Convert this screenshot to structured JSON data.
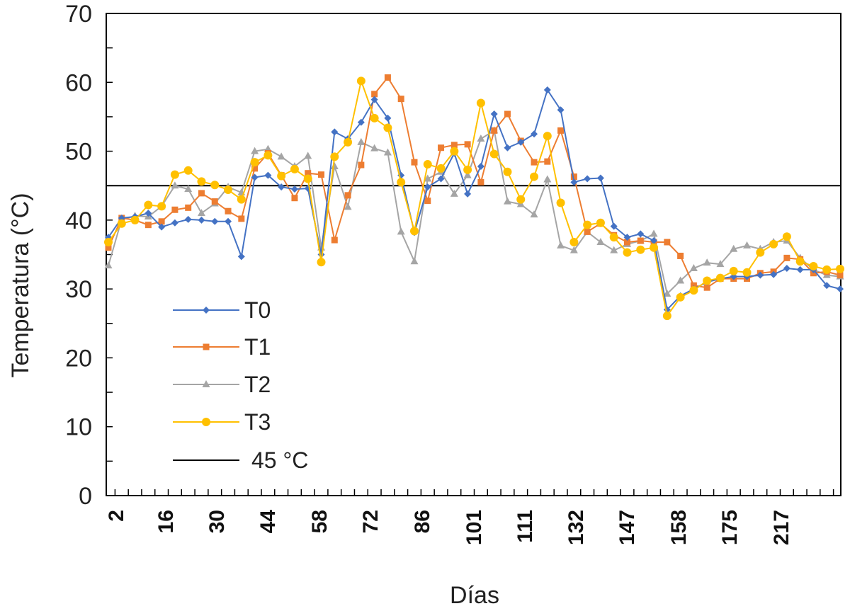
{
  "chart_data": {
    "type": "line",
    "title": "",
    "xlabel": "Días",
    "ylabel": "Temperatura (°C)",
    "ylim": [
      0,
      70
    ],
    "yticks": [
      0,
      10,
      20,
      30,
      40,
      50,
      60,
      70
    ],
    "xtick_labels": [
      "2",
      "16",
      "30",
      "44",
      "58",
      "72",
      "86",
      "101",
      "111",
      "132",
      "147",
      "158",
      "175",
      "217"
    ],
    "grid": false,
    "legend_position": "center-left",
    "reference_line": {
      "name": "45 °C",
      "value": 45,
      "color": "#000000"
    },
    "series": [
      {
        "name": "T0",
        "color": "#4472C4",
        "marker": "diamond",
        "values": [
          37.5,
          40.3,
          40.5,
          41.0,
          39.0,
          39.6,
          40.1,
          40.0,
          39.8,
          39.8,
          34.7,
          46.2,
          46.5,
          44.8,
          44.5,
          44.6,
          35.0,
          52.8,
          51.8,
          54.2,
          57.5,
          54.8,
          46.5,
          38.2,
          44.8,
          46.0,
          49.7,
          43.8,
          47.8,
          55.4,
          50.5,
          51.3,
          52.5,
          58.9,
          56.0,
          45.5,
          46.0,
          46.1,
          39.1,
          37.5,
          38.0,
          37.0,
          27.0,
          29.0,
          30.0,
          31.0,
          31.5,
          31.8,
          31.8,
          32.0,
          32.1,
          33.0,
          32.8,
          32.8,
          30.5,
          30.0
        ]
      },
      {
        "name": "T1",
        "color": "#ED7D31",
        "marker": "square",
        "values": [
          36.0,
          40.3,
          40.0,
          39.3,
          39.8,
          41.5,
          41.8,
          43.9,
          42.7,
          41.3,
          40.2,
          47.5,
          49.7,
          46.5,
          43.2,
          46.8,
          46.6,
          37.1,
          43.6,
          48.0,
          58.3,
          60.7,
          57.6,
          48.4,
          42.8,
          50.5,
          50.9,
          51.0,
          45.5,
          53.0,
          55.4,
          51.5,
          48.4,
          48.5,
          53.0,
          46.3,
          38.3,
          39.5,
          37.8,
          36.8,
          37.0,
          36.8,
          36.8,
          34.8,
          30.5,
          30.2,
          31.5,
          31.5,
          31.5,
          32.3,
          32.5,
          34.5,
          34.3,
          32.3,
          32.5,
          32.0
        ]
      },
      {
        "name": "T2",
        "color": "#A5A5A5",
        "marker": "triangle",
        "values": [
          33.4,
          40.1,
          40.6,
          40.5,
          42.0,
          45.0,
          44.5,
          41.0,
          42.4,
          44.8,
          44.0,
          50.0,
          50.3,
          49.2,
          47.8,
          49.3,
          36.0,
          47.8,
          41.9,
          51.3,
          50.4,
          49.8,
          38.3,
          34.0,
          46.0,
          47.0,
          43.8,
          46.5,
          51.8,
          53.0,
          42.7,
          42.3,
          40.8,
          45.9,
          36.3,
          35.6,
          38.3,
          36.8,
          35.6,
          36.5,
          37.0,
          38.0,
          29.3,
          31.2,
          33.0,
          33.8,
          33.6,
          35.8,
          36.3,
          35.8,
          36.8,
          37.0,
          34.5,
          32.8,
          32.0,
          31.8
        ]
      },
      {
        "name": "T3",
        "color": "#FFC000",
        "marker": "circle",
        "values": [
          36.8,
          39.5,
          40.0,
          42.2,
          42.0,
          46.6,
          47.2,
          45.6,
          45.1,
          44.4,
          43.0,
          48.4,
          49.4,
          46.4,
          47.4,
          46.0,
          33.9,
          49.2,
          51.3,
          60.2,
          54.8,
          53.4,
          45.5,
          38.4,
          48.1,
          47.5,
          50.0,
          47.3,
          57.0,
          49.6,
          47.0,
          43.0,
          46.3,
          52.2,
          42.5,
          36.8,
          39.3,
          39.6,
          37.5,
          35.3,
          35.7,
          36.0,
          26.1,
          28.8,
          29.8,
          31.2,
          31.6,
          32.6,
          32.4,
          35.3,
          36.5,
          37.6,
          34.0,
          33.3,
          32.8,
          32.9
        ]
      }
    ]
  }
}
